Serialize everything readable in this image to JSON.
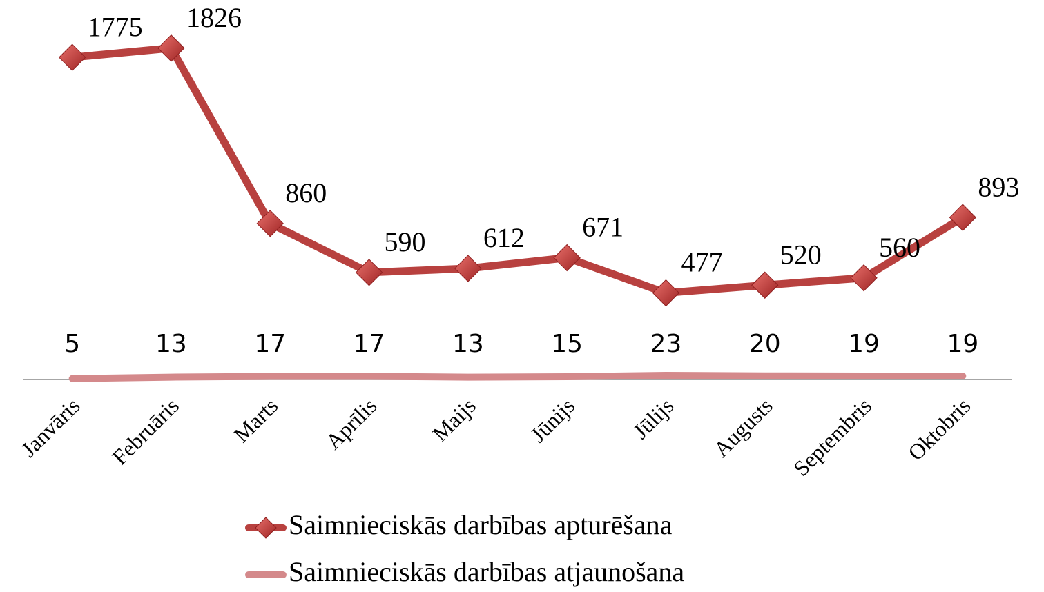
{
  "chart_data": {
    "type": "line",
    "categories": [
      "Janvāris",
      "Februāris",
      "Marts",
      "Aprīlis",
      "Maijs",
      "Jūnijs",
      "Jūlijs",
      "Augusts",
      "Septembris",
      "Oktobris"
    ],
    "series": [
      {
        "name": "Saimnieciskās darbības apturēšana",
        "color": "#b8413f",
        "marker": "diamond",
        "values": [
          1775,
          1826,
          860,
          590,
          612,
          671,
          477,
          520,
          560,
          893
        ]
      },
      {
        "name": "Saimnieciskās darbības atjaunošana",
        "color": "#d4898b",
        "marker": "none",
        "values": [
          5,
          13,
          17,
          17,
          13,
          15,
          23,
          20,
          19,
          19
        ]
      }
    ],
    "ylim": [
      0,
      2000
    ],
    "grid": false,
    "legend": "bottom"
  }
}
